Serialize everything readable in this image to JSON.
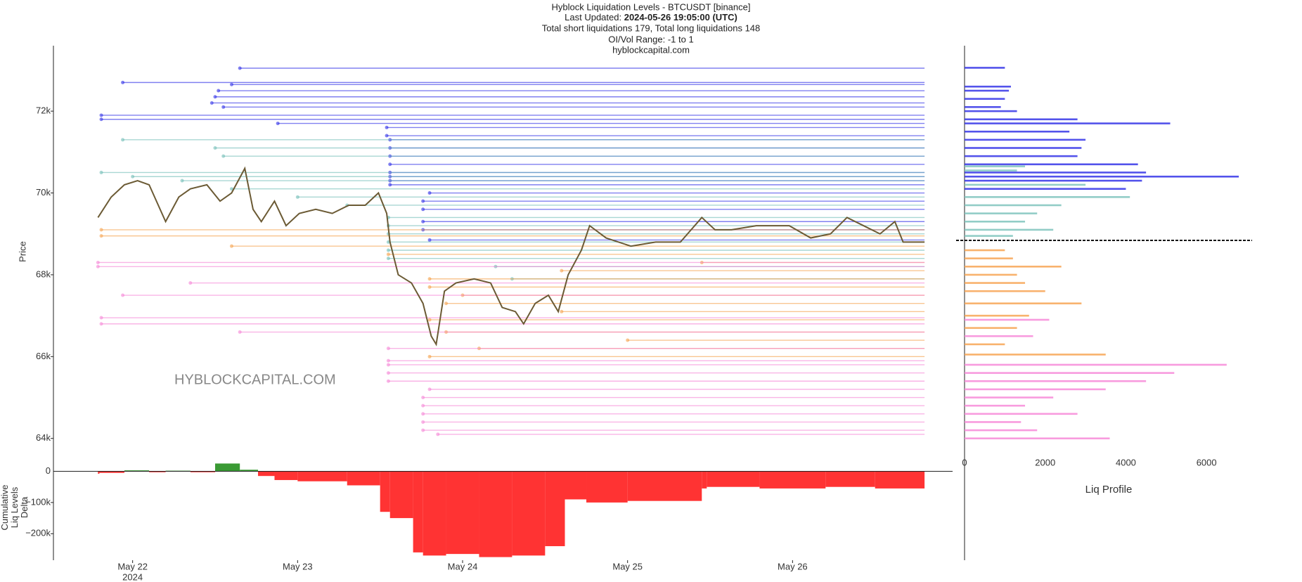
{
  "header": {
    "title": "Hyblock Liquidation Levels - BTCUSDT [binance]",
    "updated_label": "Last Updated:",
    "updated": "2024-05-26 19:05:00 (UTC)",
    "totals": "Total short liquidations 179, Total long liquidations 148",
    "range": "OI/Vol Range: -1 to 1",
    "site": "hyblockcapital.com"
  },
  "watermark": "HYBLOCKCAPITAL.COM",
  "chart_data": [
    {
      "type": "line",
      "y_label": "Price",
      "xlim": [
        -0.48,
        4.97
      ],
      "ylim": [
        63600,
        73600
      ],
      "yticks": [
        {
          "value": 64000,
          "label": "64k"
        },
        {
          "value": 66000,
          "label": "66k"
        },
        {
          "value": 68000,
          "label": "68k"
        },
        {
          "value": 70000,
          "label": "70k"
        },
        {
          "value": 72000,
          "label": "72k"
        }
      ],
      "series": [
        {
          "color": "#6b5a34",
          "x": [
            -0.21,
            -0.13,
            -0.05,
            0.03,
            0.1,
            0.2,
            0.28,
            0.35,
            0.45,
            0.53,
            0.6,
            0.68,
            0.73,
            0.78,
            0.86,
            0.93,
            1.01,
            1.11,
            1.21,
            1.31,
            1.41,
            1.49,
            1.54,
            1.56,
            1.61,
            1.69,
            1.76,
            1.81,
            1.84,
            1.89,
            1.96,
            2.07,
            2.17,
            2.24,
            2.32,
            2.37,
            2.44,
            2.52,
            2.58,
            2.64,
            2.72,
            2.77,
            2.87,
            3.02,
            3.17,
            3.32,
            3.45,
            3.53,
            3.63,
            3.78,
            3.98,
            4.11,
            4.23,
            4.33,
            4.43,
            4.53,
            4.62,
            4.67,
            4.74,
            4.8
          ],
          "values": [
            69400,
            69900,
            70200,
            70300,
            70200,
            69300,
            69900,
            70100,
            70200,
            69800,
            70000,
            70600,
            69600,
            69300,
            69800,
            69200,
            69500,
            69600,
            69500,
            69700,
            69700,
            70000,
            69500,
            68800,
            68000,
            67800,
            67300,
            66500,
            66300,
            67600,
            67800,
            67900,
            67800,
            67200,
            67100,
            66800,
            67300,
            67500,
            67100,
            68000,
            68600,
            69200,
            68900,
            68700,
            68800,
            68800,
            69400,
            69100,
            69100,
            69200,
            69200,
            68900,
            69000,
            69400,
            69200,
            69000,
            69300,
            68800,
            68800,
            68800
          ]
        }
      ],
      "levels_end": 4.8,
      "levels": [
        {
          "color": "#2b2be6",
          "prices": [
            73050,
            72700,
            72650,
            72500,
            72350,
            72200,
            72100,
            71900,
            71800,
            71700,
            71600,
            71400,
            71300,
            71100,
            70900,
            70700,
            70500,
            70400,
            70300,
            70200,
            70000,
            69800,
            69600,
            69300,
            69100,
            68850
          ],
          "starts": [
            0.65,
            -0.06,
            0.6,
            0.52,
            0.5,
            0.48,
            0.55,
            -0.19,
            -0.19,
            0.88,
            1.54,
            1.54,
            1.56,
            1.56,
            1.56,
            1.56,
            1.56,
            1.56,
            1.56,
            1.56,
            1.8,
            1.76,
            1.76,
            1.76,
            1.76,
            1.8
          ]
        },
        {
          "color": "#6fbdb6",
          "prices": [
            71300,
            71100,
            70900,
            70500,
            70400,
            70300,
            70100,
            69900,
            69700,
            69400,
            69200,
            69000,
            68800,
            68600,
            68400,
            68200,
            67900
          ],
          "starts": [
            -0.06,
            0.5,
            0.55,
            -0.19,
            0.0,
            0.3,
            0.6,
            1.0,
            1.3,
            1.55,
            1.55,
            1.55,
            1.55,
            1.55,
            1.55,
            2.2,
            2.3
          ]
        },
        {
          "color": "#f5a04a",
          "prices": [
            69100,
            68950,
            68700,
            68500,
            68300,
            68100,
            67900,
            67700,
            67500,
            67300,
            67100,
            66900,
            66600,
            66400,
            66200,
            66000
          ],
          "starts": [
            -0.19,
            -0.19,
            0.6,
            1.55,
            3.45,
            2.6,
            1.8,
            1.8,
            2.0,
            1.9,
            2.6,
            1.8,
            1.9,
            3.0,
            2.1,
            1.8
          ]
        },
        {
          "color": "#f584d6",
          "prices": [
            68300,
            68200,
            67800,
            67500,
            66950,
            66800,
            66600,
            66200,
            65900,
            65800,
            65600,
            65400,
            65200,
            65000,
            64800,
            64600,
            64400,
            64200,
            64100
          ],
          "starts": [
            -0.21,
            -0.21,
            0.35,
            -0.06,
            -0.19,
            -0.19,
            0.65,
            1.55,
            1.55,
            1.55,
            1.55,
            1.55,
            1.8,
            1.76,
            1.76,
            1.76,
            1.76,
            1.76,
            1.85
          ]
        }
      ]
    },
    {
      "type": "bar",
      "y_label": [
        "Cumulative",
        "Liq Levels",
        "Delta"
      ],
      "xlim": [
        -0.48,
        4.97
      ],
      "ylim": [
        -285000,
        53000
      ],
      "xticks": [
        {
          "value": 0,
          "label": "May 22"
        },
        {
          "value": 1,
          "label": "May 23"
        },
        {
          "value": 2,
          "label": "May 24"
        },
        {
          "value": 3,
          "label": "May 25"
        },
        {
          "value": 4,
          "label": "May 26"
        }
      ],
      "x_year_label": "2024",
      "yticks": [
        {
          "value": -200000,
          "label": "−200k"
        },
        {
          "value": -100000,
          "label": "−100k"
        },
        0
      ],
      "pos_color": "#3a9a34",
      "neg_color": "#ff3333",
      "x": [
        -0.21,
        -0.05,
        0.1,
        0.2,
        0.35,
        0.5,
        0.65,
        0.76,
        0.86,
        1.0,
        1.3,
        1.5,
        1.56,
        1.7,
        1.76,
        1.9,
        2.1,
        2.3,
        2.5,
        2.62,
        2.75,
        3.0,
        3.45,
        3.48,
        3.8,
        4.2,
        4.5,
        4.8
      ],
      "values": [
        -8000,
        -5000,
        3000,
        -3000,
        2000,
        -3000,
        25000,
        5000,
        -15000,
        -28000,
        -32000,
        -45000,
        -130000,
        -150000,
        -260000,
        -270000,
        -265000,
        -275000,
        -270000,
        -240000,
        -90000,
        -100000,
        -95000,
        -55000,
        -50000,
        -55000,
        -50000,
        -55000
      ]
    },
    {
      "type": "hbar",
      "x_label": "Liq Profile",
      "xlim": [
        0,
        7130
      ],
      "xticks": [
        0,
        2000,
        4000,
        6000
      ],
      "ylim": [
        63600,
        73600
      ],
      "current_price": 68840,
      "groups": [
        {
          "color": "#3535e8",
          "prices": [
            73060,
            72600,
            72500,
            72300,
            72100,
            72000,
            71800,
            71700,
            71500,
            71300,
            71100,
            70900,
            70700,
            70500,
            70400,
            70300,
            70100
          ],
          "values": [
            1000,
            1150,
            1100,
            1000,
            900,
            1300,
            2800,
            5100,
            2600,
            3000,
            2900,
            2800,
            4300,
            4500,
            6800,
            4400,
            4000
          ]
        },
        {
          "color": "#7fc4bd",
          "prices": [
            70650,
            70550,
            70200,
            69900,
            69700,
            69500,
            69300,
            69100,
            68950
          ],
          "values": [
            1500,
            1300,
            3000,
            4100,
            2400,
            1800,
            1500,
            2200,
            1200
          ]
        },
        {
          "color": "#f7a453",
          "prices": [
            68600,
            68400,
            68200,
            68000,
            67800,
            67600,
            67300,
            67000,
            66700,
            66300,
            66050
          ],
          "values": [
            1000,
            1200,
            2400,
            1300,
            1500,
            2000,
            2900,
            1600,
            1300,
            1000,
            3500
          ]
        },
        {
          "color": "#f78ad8",
          "prices": [
            66900,
            66500,
            65800,
            65600,
            65400,
            65200,
            65000,
            64800,
            64600,
            64400,
            64200,
            64000
          ],
          "values": [
            2100,
            1700,
            6500,
            5200,
            4500,
            3500,
            2200,
            1500,
            2800,
            1400,
            1800,
            3600
          ]
        }
      ]
    }
  ]
}
